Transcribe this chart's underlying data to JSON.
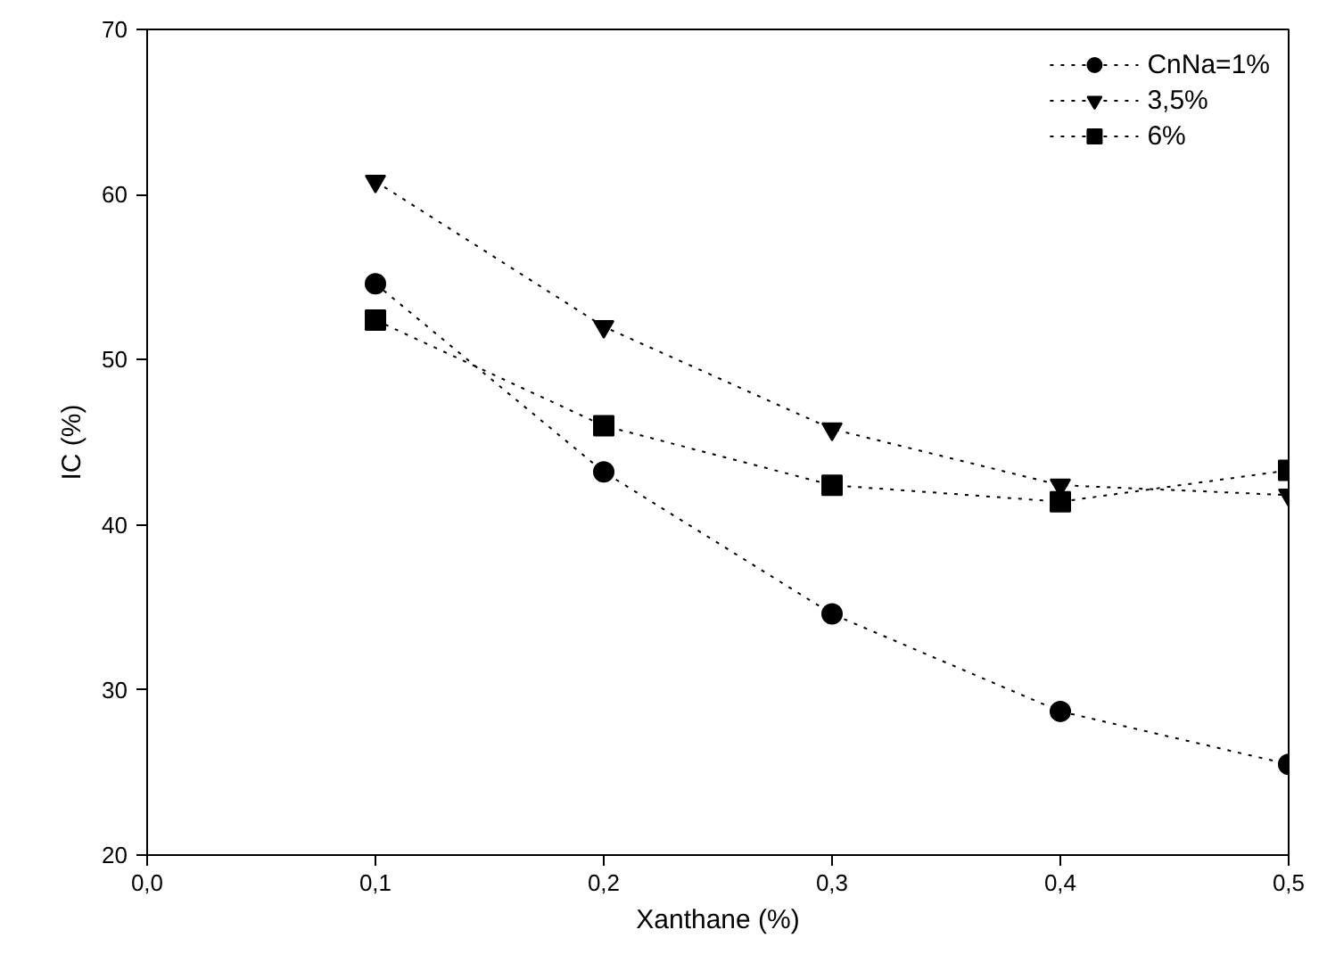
{
  "chart_data": {
    "type": "line",
    "xlabel": "Xanthane (%)",
    "ylabel": "IC (%)",
    "x": [
      0.1,
      0.2,
      0.3,
      0.4,
      0.5
    ],
    "series": [
      {
        "name": "CnNa=1%",
        "color": "#000000",
        "marker": "circle",
        "values": [
          54.6,
          43.2,
          34.6,
          28.7,
          25.5
        ]
      },
      {
        "name": "3,5%",
        "color": "#000000",
        "marker": "triangle",
        "values": [
          60.8,
          52.0,
          45.8,
          42.4,
          41.8
        ]
      },
      {
        "name": "6%",
        "color": "#000000",
        "marker": "square",
        "values": [
          52.4,
          46.0,
          42.4,
          41.4,
          43.3
        ]
      }
    ],
    "xlim": [
      0,
      0.5
    ],
    "ylim": [
      20,
      70
    ],
    "xticks": [
      {
        "value": 0,
        "label": "0,0"
      },
      {
        "value": 0.1,
        "label": "0,1"
      },
      {
        "value": 0.2,
        "label": "0,2"
      },
      {
        "value": 0.3,
        "label": "0,3"
      },
      {
        "value": 0.4,
        "label": "0,4"
      },
      {
        "value": 0.5,
        "label": "0,5"
      }
    ],
    "yticks": [
      20,
      30,
      40,
      50,
      60,
      70
    ],
    "line_style": "dotted",
    "grid": false,
    "legend": "top right"
  }
}
